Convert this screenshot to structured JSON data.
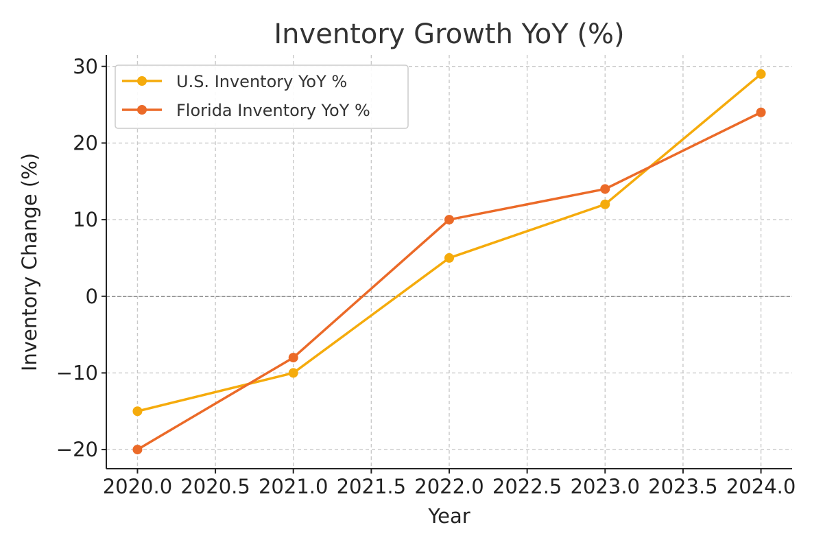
{
  "chart_data": {
    "type": "line",
    "title": "Inventory Growth YoY (%)",
    "xlabel": "Year",
    "ylabel": "Inventory Change (%)",
    "x": [
      2020,
      2021,
      2022,
      2023,
      2024
    ],
    "xlim": [
      2019.8,
      2024.2
    ],
    "ylim": [
      -22.5,
      31.5
    ],
    "xticks": [
      2020.0,
      2020.5,
      2021.0,
      2021.5,
      2022.0,
      2022.5,
      2023.0,
      2023.5,
      2024.0
    ],
    "xtick_labels": [
      "2020.0",
      "2020.5",
      "2021.0",
      "2021.5",
      "2022.0",
      "2022.5",
      "2023.0",
      "2023.5",
      "2024.0"
    ],
    "yticks": [
      -20,
      -10,
      0,
      10,
      20,
      30
    ],
    "ytick_labels": [
      "−20",
      "−10",
      "0",
      "10",
      "20",
      "30"
    ],
    "grid": true,
    "zero_reference_line": true,
    "legend_position": "top-left",
    "series": [
      {
        "name": "U.S. Inventory YoY %",
        "values": [
          -15,
          -10,
          5,
          12,
          29
        ],
        "color": "#F5AB0C"
      },
      {
        "name": "Florida Inventory YoY %",
        "values": [
          -20,
          -8,
          10,
          14,
          24
        ],
        "color": "#EB6A28"
      }
    ]
  }
}
